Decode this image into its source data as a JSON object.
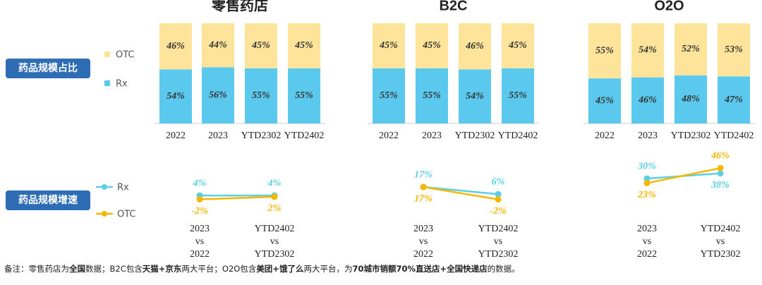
{
  "row_labels": [
    "药品规模占比",
    "药品规模增速"
  ],
  "footnote": [
    "备注：零售药店为",
    "全国",
    "数据；B2C包含",
    "天猫+京东",
    "两大平台；O2O包含",
    "美团+饿了么",
    "两大平台，为",
    "70城市销额70%直送店+全国快递店",
    "的数据。"
  ],
  "chart_data": [
    {
      "type": "bar",
      "stacked": true,
      "title": "零售药店",
      "categories": [
        "2022",
        "2023",
        "YTD2302",
        "YTD2402"
      ],
      "ylim": [
        0,
        100
      ],
      "series": [
        {
          "name": "Rx",
          "color": "#5bc8ee",
          "values": [
            54,
            56,
            55,
            55
          ],
          "value_labels": [
            "54%",
            "56%",
            "55%",
            "55%"
          ]
        },
        {
          "name": "OTC",
          "color": "#fde49a",
          "values": [
            46,
            44,
            45,
            45
          ],
          "value_labels": [
            "46%",
            "44%",
            "45%",
            "45%"
          ]
        }
      ]
    },
    {
      "type": "bar",
      "stacked": true,
      "title": "B2C",
      "categories": [
        "2022",
        "2023",
        "YTD2302",
        "YTD2402"
      ],
      "ylim": [
        0,
        100
      ],
      "series": [
        {
          "name": "Rx",
          "color": "#5bc8ee",
          "values": [
            55,
            55,
            54,
            55
          ],
          "value_labels": [
            "55%",
            "55%",
            "54%",
            "55%"
          ]
        },
        {
          "name": "OTC",
          "color": "#fde49a",
          "values": [
            45,
            45,
            46,
            45
          ],
          "value_labels": [
            "45%",
            "45%",
            "46%",
            "45%"
          ]
        }
      ]
    },
    {
      "type": "bar",
      "stacked": true,
      "title": "O2O",
      "categories": [
        "2022",
        "2023",
        "YTD2302",
        "YTD2402"
      ],
      "ylim": [
        0,
        100
      ],
      "series": [
        {
          "name": "Rx",
          "color": "#5bc8ee",
          "values": [
            45,
            46,
            48,
            47
          ],
          "value_labels": [
            "45%",
            "46%",
            "48%",
            "47%"
          ]
        },
        {
          "name": "OTC",
          "color": "#fde49a",
          "values": [
            55,
            54,
            52,
            53
          ],
          "value_labels": [
            "55%",
            "54%",
            "52%",
            "53%"
          ]
        }
      ]
    },
    {
      "type": "line",
      "categories": [
        [
          "2023",
          "vs",
          "2022"
        ],
        [
          "YTD2402",
          "vs",
          "YTD2302"
        ]
      ],
      "ylim": [
        -10,
        55
      ],
      "series": [
        {
          "name": "Rx",
          "color": "#5ccfe6",
          "values": [
            4,
            4
          ],
          "value_labels": [
            "4%",
            "4%"
          ]
        },
        {
          "name": "OTC",
          "color": "#f5b800",
          "values": [
            -2,
            2
          ],
          "value_labels": [
            "-2%",
            "2%"
          ]
        }
      ]
    },
    {
      "type": "line",
      "categories": [
        [
          "2023",
          "vs",
          "2022"
        ],
        [
          "YTD2402",
          "vs",
          "YTD2302"
        ]
      ],
      "ylim": [
        -10,
        55
      ],
      "series": [
        {
          "name": "Rx",
          "color": "#5ccfe6",
          "values": [
            17,
            6
          ],
          "value_labels": [
            "17%",
            "6%"
          ]
        },
        {
          "name": "OTC",
          "color": "#f5b800",
          "values": [
            17,
            -2
          ],
          "value_labels": [
            "17%",
            "-2%"
          ]
        }
      ]
    },
    {
      "type": "line",
      "categories": [
        [
          "2023",
          "vs",
          "2022"
        ],
        [
          "YTD2402",
          "vs",
          "YTD2302"
        ]
      ],
      "ylim": [
        -10,
        55
      ],
      "series": [
        {
          "name": "Rx",
          "color": "#5ccfe6",
          "values": [
            30,
            38
          ],
          "value_labels": [
            "30%",
            "38%"
          ]
        },
        {
          "name": "OTC",
          "color": "#f5b800",
          "values": [
            23,
            46
          ],
          "value_labels": [
            "23%",
            "46%"
          ]
        }
      ]
    }
  ]
}
